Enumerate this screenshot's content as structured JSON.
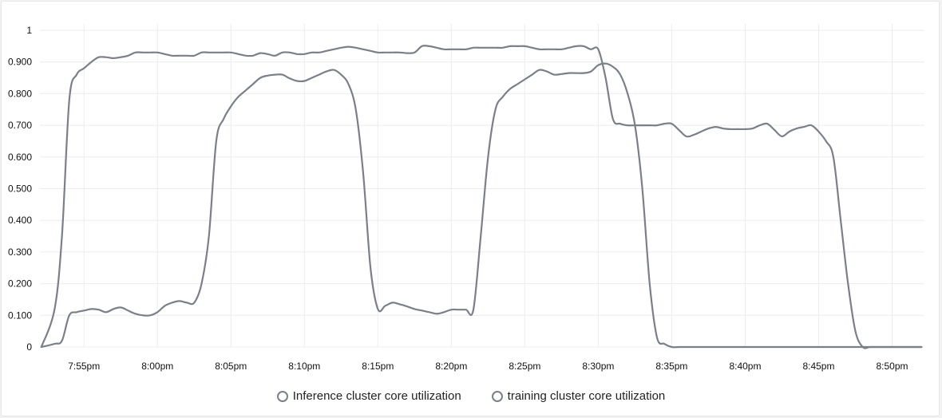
{
  "chart_data": {
    "type": "line",
    "title": "",
    "xlabel": "",
    "ylabel": "",
    "ylim": [
      0,
      1
    ],
    "y_ticks": [
      "0",
      "0.100",
      "0.200",
      "0.300",
      "0.400",
      "0.500",
      "0.600",
      "0.700",
      "0.800",
      "0.900",
      "1"
    ],
    "x_tick_labels": [
      "7:55pm",
      "8:00pm",
      "8:05pm",
      "8:10pm",
      "8:15pm",
      "8:20pm",
      "8:25pm",
      "8:30pm",
      "8:35pm",
      "8:40pm",
      "8:45pm",
      "8:50pm"
    ],
    "x_tick_minutes": [
      55,
      60,
      65,
      70,
      75,
      80,
      85,
      90,
      95,
      100,
      105,
      110
    ],
    "xlim": [
      52,
      112.2
    ],
    "grid": true,
    "legend_position": "bottom-center",
    "series": [
      {
        "name": "Inference cluster core utilization",
        "color": "#7b7f87",
        "x": [
          52.1,
          53,
          53.5,
          54,
          54.5,
          55,
          55.5,
          56,
          56.5,
          57,
          57.5,
          58,
          58.5,
          59,
          59.5,
          60,
          60.5,
          61,
          61.5,
          62,
          62.5,
          63,
          63.5,
          64,
          64.5,
          65,
          65.5,
          66,
          66.5,
          67,
          67.5,
          68,
          68.5,
          69,
          69.5,
          70,
          70.5,
          71,
          71.5,
          72,
          72.5,
          73,
          73.5,
          74,
          74.5,
          75,
          75.5,
          76,
          76.5,
          77,
          77.5,
          78,
          78.5,
          79,
          79.5,
          80,
          80.5,
          81,
          81.5,
          82,
          82.5,
          83,
          83.5,
          84,
          84.5,
          85,
          85.5,
          86,
          86.5,
          87,
          87.5,
          88,
          88.5,
          89,
          89.5,
          90,
          90.5,
          91,
          91.5,
          92,
          92.5,
          93,
          93.5,
          94,
          94.5,
          95,
          95.5,
          96,
          96.5,
          97,
          97.5,
          98,
          98.5,
          99,
          99.5,
          100,
          100.5,
          101,
          101.5,
          102,
          102.5,
          103,
          103.5,
          104,
          104.5,
          105,
          105.5,
          106,
          106.5,
          107,
          107.5,
          108,
          108.5,
          109,
          109.5,
          110,
          110.5,
          111,
          111.5,
          112
        ],
        "values": [
          0,
          0.12,
          0.35,
          0.78,
          0.86,
          0.88,
          0.9,
          0.915,
          0.915,
          0.912,
          0.915,
          0.92,
          0.93,
          0.93,
          0.93,
          0.93,
          0.925,
          0.92,
          0.92,
          0.92,
          0.92,
          0.93,
          0.93,
          0.93,
          0.93,
          0.93,
          0.925,
          0.92,
          0.92,
          0.928,
          0.925,
          0.92,
          0.93,
          0.93,
          0.925,
          0.925,
          0.93,
          0.93,
          0.935,
          0.94,
          0.945,
          0.948,
          0.945,
          0.94,
          0.935,
          0.93,
          0.93,
          0.93,
          0.93,
          0.928,
          0.93,
          0.95,
          0.95,
          0.945,
          0.94,
          0.94,
          0.94,
          0.94,
          0.945,
          0.945,
          0.945,
          0.945,
          0.945,
          0.95,
          0.95,
          0.95,
          0.945,
          0.94,
          0.94,
          0.94,
          0.94,
          0.945,
          0.95,
          0.95,
          0.94,
          0.94,
          0.85,
          0.72,
          0.705,
          0.7,
          0.7,
          0.7,
          0.7,
          0.7,
          0.705,
          0.705,
          0.685,
          0.665,
          0.67,
          0.68,
          0.69,
          0.695,
          0.69,
          0.688,
          0.688,
          0.688,
          0.69,
          0.7,
          0.705,
          0.685,
          0.665,
          0.68,
          0.69,
          0.695,
          0.7,
          0.68,
          0.65,
          0.6,
          0.4,
          0.2,
          0.05,
          0.0,
          0.0,
          0.0,
          0.0,
          0.0,
          0.0,
          0.0,
          0.0,
          0.0
        ]
      },
      {
        "name": "training cluster core utilization",
        "color": "#7b7f87",
        "x": [
          52.1,
          53,
          53.5,
          54,
          54.5,
          55,
          55.5,
          56,
          56.5,
          57,
          57.5,
          58,
          58.5,
          59,
          59.5,
          60,
          60.5,
          61,
          61.5,
          62,
          62.5,
          63,
          63.5,
          64,
          64.5,
          65,
          65.5,
          66,
          66.5,
          67,
          67.5,
          68,
          68.5,
          69,
          69.5,
          70,
          70.5,
          71,
          71.5,
          72,
          72.5,
          73,
          73.5,
          74,
          74.5,
          75,
          75.5,
          76,
          76.5,
          77,
          77.5,
          78,
          78.5,
          79,
          79.5,
          80,
          80.5,
          81,
          81.5,
          82,
          82.5,
          83,
          83.5,
          84,
          84.5,
          85,
          85.5,
          86,
          86.5,
          87,
          87.5,
          88,
          88.5,
          89,
          89.5,
          90,
          90.5,
          91,
          91.5,
          92,
          92.5,
          93,
          93.5,
          94,
          94.5,
          95,
          95.5,
          96,
          96.5,
          97,
          97.5,
          98,
          98.5,
          99,
          99.5,
          100,
          100.5,
          101,
          101.5,
          102,
          102.5,
          103,
          103.5,
          104,
          104.5,
          105,
          105.5,
          106,
          106.5,
          107,
          107.5,
          108,
          108.5,
          109,
          109.5,
          110,
          110.5,
          111,
          111.5,
          112
        ],
        "values": [
          0,
          0.01,
          0.02,
          0.1,
          0.11,
          0.115,
          0.12,
          0.118,
          0.11,
          0.12,
          0.125,
          0.115,
          0.105,
          0.1,
          0.1,
          0.11,
          0.13,
          0.14,
          0.145,
          0.14,
          0.14,
          0.2,
          0.35,
          0.65,
          0.72,
          0.76,
          0.79,
          0.81,
          0.83,
          0.85,
          0.857,
          0.86,
          0.86,
          0.848,
          0.84,
          0.84,
          0.85,
          0.86,
          0.87,
          0.875,
          0.86,
          0.83,
          0.75,
          0.55,
          0.25,
          0.12,
          0.13,
          0.14,
          0.135,
          0.128,
          0.12,
          0.115,
          0.11,
          0.105,
          0.11,
          0.118,
          0.118,
          0.118,
          0.118,
          0.35,
          0.6,
          0.75,
          0.79,
          0.815,
          0.83,
          0.845,
          0.86,
          0.875,
          0.87,
          0.86,
          0.862,
          0.865,
          0.865,
          0.865,
          0.87,
          0.89,
          0.895,
          0.885,
          0.86,
          0.8,
          0.7,
          0.5,
          0.2,
          0.03,
          0.01,
          0.0,
          0.0,
          0.0,
          0.0,
          0.0,
          0.0,
          0.0,
          0.0,
          0.0,
          0.0,
          0.0,
          0.0,
          0.0,
          0.0,
          0.0,
          0.0,
          0.0,
          0.0,
          0.0,
          0.0,
          0.0,
          0.0,
          0.0,
          0.0,
          0.0,
          0.0,
          0.0,
          0.0,
          0.0,
          0.0,
          0.0,
          0.0,
          0.0,
          0.0,
          0.0
        ]
      }
    ]
  },
  "legend": {
    "items": [
      {
        "label": "Inference cluster core utilization"
      },
      {
        "label": "training cluster core utilization"
      }
    ]
  }
}
